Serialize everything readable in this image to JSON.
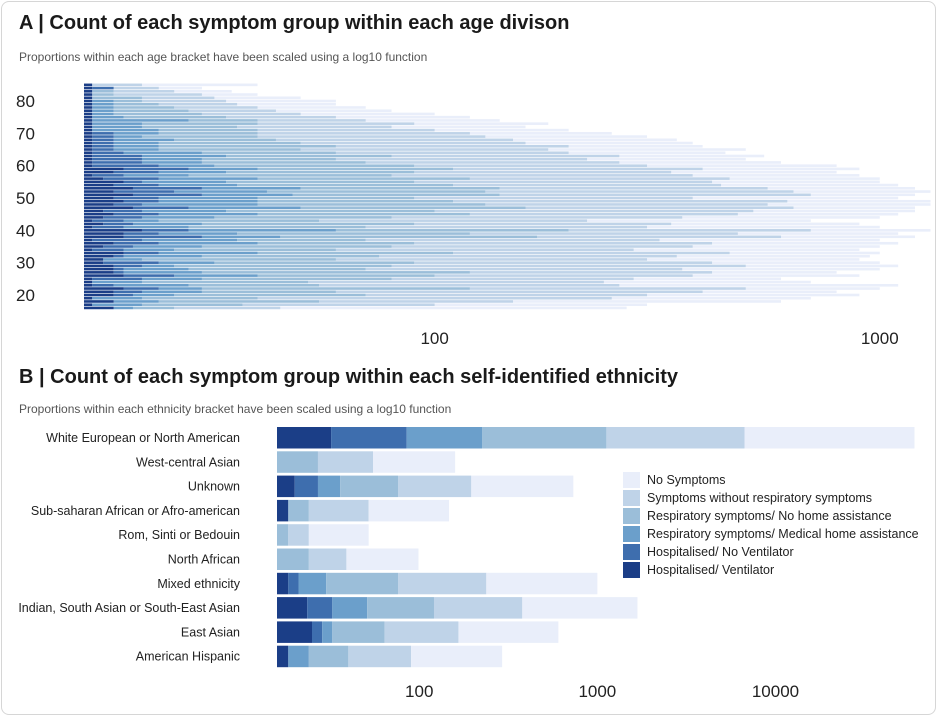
{
  "colors": {
    "No Symptoms": "#e9eefa",
    "Symptoms without respiratory symptoms": "#bfd3e8",
    "Respiratory symptoms/ No home assistance": "#9bbed9",
    "Respiratory symptoms/ Medical home assistance": "#6b9fcb",
    "Hospitalised/ No Ventilator": "#3e6eae",
    "Hospitalised/ Ventilator": "#1b3e87"
  },
  "chart_data": [
    {
      "type": "bar",
      "orientation": "horizontal-stacked",
      "title": "A | Count of each symptom group within each age divison",
      "subtitle": "Proportions within each age bracket have been scaled using a log10 function",
      "x_scale": "log",
      "xlim": [
        16.3,
        1200
      ],
      "x_ticks": [
        "100",
        "1000"
      ],
      "y_ticks": [
        "20",
        "30",
        "40",
        "50",
        "60",
        "70",
        "80"
      ],
      "ylim": [
        16,
        85
      ],
      "segment_order": [
        "Hospitalised/ Ventilator",
        "Hospitalised/ No Ventilator",
        "Respiratory symptoms/ Medical home assistance",
        "Respiratory symptoms/ No home assistance",
        "Symptoms without respiratory symptoms",
        "No Symptoms"
      ],
      "value_note_columns": [
        "age",
        "cumulative end of each segment"
      ],
      "rows": [
        [
          16,
          19,
          19,
          21,
          26,
          45,
          270
        ],
        [
          17,
          17,
          17,
          22,
          37,
          100,
          300
        ],
        [
          18,
          19,
          19,
          24,
          55,
          150,
          600
        ],
        [
          19,
          17,
          17,
          22,
          40,
          250,
          700
        ],
        [
          20,
          19,
          21,
          26,
          70,
          300,
          900
        ],
        [
          21,
          19,
          22,
          30,
          60,
          400,
          800
        ],
        [
          22,
          20,
          24,
          30,
          120,
          500,
          1000
        ],
        [
          23,
          17,
          19,
          28,
          55,
          260,
          1100
        ],
        [
          24,
          17,
          17,
          22,
          52,
          240,
          700
        ],
        [
          25,
          17,
          22,
          30,
          80,
          280,
          600
        ],
        [
          26,
          20,
          26,
          40,
          100,
          380,
          900
        ],
        [
          27,
          19,
          20,
          30,
          120,
          420,
          800
        ],
        [
          28,
          19,
          20,
          28,
          70,
          360,
          1000
        ],
        [
          29,
          19,
          22,
          26,
          80,
          500,
          1100
        ],
        [
          30,
          18,
          24,
          32,
          90,
          420,
          1000
        ],
        [
          31,
          18,
          18,
          22,
          60,
          300,
          900
        ],
        [
          32,
          19,
          20,
          30,
          75,
          350,
          950
        ],
        [
          33,
          20,
          24,
          40,
          110,
          460,
          1000
        ],
        [
          34,
          17,
          20,
          26,
          60,
          280,
          900
        ],
        [
          35,
          18,
          21,
          30,
          80,
          380,
          1000
        ],
        [
          36,
          19,
          24,
          40,
          90,
          420,
          1100
        ],
        [
          37,
          17,
          22,
          36,
          70,
          320,
          1000
        ],
        [
          38,
          20,
          30,
          45,
          170,
          600,
          1200
        ],
        [
          39,
          20,
          24,
          36,
          120,
          480,
          1100
        ],
        [
          40,
          22,
          28,
          60,
          200,
          700,
          1300
        ],
        [
          41,
          17,
          20,
          28,
          70,
          300,
          1000
        ],
        [
          42,
          18,
          21,
          30,
          90,
          340,
          900
        ],
        [
          43,
          17,
          20,
          24,
          55,
          220,
          700
        ],
        [
          44,
          18,
          22,
          32,
          80,
          360,
          1000
        ],
        [
          45,
          19,
          24,
          40,
          120,
          480,
          1100
        ],
        [
          46,
          18,
          22,
          34,
          100,
          520,
          1200
        ],
        [
          47,
          21,
          28,
          50,
          160,
          640,
          1200
        ],
        [
          48,
          19,
          22,
          40,
          130,
          560,
          1300
        ],
        [
          49,
          20,
          24,
          40,
          110,
          620,
          1300
        ],
        [
          50,
          19,
          24,
          40,
          90,
          380,
          1100
        ],
        [
          51,
          21,
          30,
          48,
          140,
          700,
          1200
        ],
        [
          52,
          19,
          26,
          42,
          130,
          640,
          1300
        ],
        [
          53,
          21,
          30,
          50,
          140,
          560,
          1200
        ],
        [
          54,
          19,
          24,
          36,
          110,
          440,
          1100
        ],
        [
          55,
          20,
          22,
          34,
          90,
          420,
          1000
        ],
        [
          56,
          18,
          24,
          40,
          120,
          460,
          1000
        ],
        [
          57,
          17,
          20,
          28,
          80,
          380,
          900
        ],
        [
          58,
          19,
          24,
          34,
          90,
          340,
          800
        ],
        [
          59,
          20,
          28,
          40,
          110,
          400,
          900
        ],
        [
          60,
          17,
          24,
          32,
          90,
          300,
          800
        ],
        [
          61,
          17,
          22,
          30,
          70,
          260,
          600
        ],
        [
          62,
          17,
          22,
          30,
          60,
          220,
          500
        ],
        [
          63,
          17,
          22,
          34,
          80,
          260,
          550
        ],
        [
          64,
          17,
          20,
          30,
          60,
          200,
          450
        ],
        [
          65,
          17,
          19,
          24,
          50,
          180,
          500
        ],
        [
          66,
          17,
          19,
          24,
          60,
          200,
          400
        ],
        [
          67,
          17,
          19,
          24,
          50,
          160,
          380
        ],
        [
          68,
          17,
          19,
          26,
          44,
          150,
          350
        ],
        [
          69,
          17,
          19,
          22,
          40,
          130,
          300
        ],
        [
          70,
          17,
          19,
          24,
          40,
          120,
          250
        ],
        [
          71,
          17,
          17,
          24,
          40,
          100,
          200
        ],
        [
          72,
          17,
          17,
          22,
          36,
          80,
          160
        ],
        [
          73,
          17,
          17,
          22,
          40,
          90,
          180
        ],
        [
          74,
          17,
          17,
          28,
          40,
          70,
          140
        ],
        [
          75,
          17,
          17,
          20,
          34,
          60,
          120
        ],
        [
          76,
          17,
          17,
          19,
          30,
          50,
          100
        ],
        [
          77,
          17,
          17,
          19,
          28,
          44,
          80
        ],
        [
          78,
          17,
          17,
          19,
          26,
          40,
          70
        ],
        [
          79,
          17,
          17,
          19,
          24,
          36,
          60
        ],
        [
          80,
          17,
          17,
          19,
          22,
          34,
          60
        ],
        [
          81,
          17,
          17,
          17,
          22,
          32,
          50
        ],
        [
          82,
          17,
          17,
          17,
          19,
          30,
          40
        ],
        [
          83,
          17,
          17,
          17,
          19,
          26,
          35
        ],
        [
          84,
          17,
          19,
          19,
          19,
          24,
          30
        ],
        [
          85,
          17,
          17,
          17,
          17,
          22,
          40
        ]
      ]
    },
    {
      "type": "bar",
      "orientation": "horizontal-stacked",
      "title": "B | Count of each symptom group within each self-identified ethnicity",
      "subtitle": "Proportions within each ethnicity bracket have been scaled using a log10 function",
      "x_scale": "log",
      "xlim": [
        15.9,
        70000
      ],
      "x_ticks": [
        "100",
        "1000",
        "10000"
      ],
      "segment_order": [
        "Hospitalised/ Ventilator",
        "Hospitalised/ No Ventilator",
        "Respiratory symptoms/ Medical home assistance",
        "Respiratory symptoms/ No home assistance",
        "Symptoms without respiratory symptoms",
        "No Symptoms"
      ],
      "categories": [
        {
          "label": "White European or North American",
          "ends": [
            32,
            85,
            226,
            1124,
            6700,
            60300
          ]
        },
        {
          "label": "West-central Asian",
          "ends": [
            15.9,
            15.9,
            15.9,
            27,
            55,
            159
          ]
        },
        {
          "label": "Unknown",
          "ends": [
            20,
            27,
            36,
            76,
            196,
            733
          ]
        },
        {
          "label": "Sub-saharan African or Afro-american",
          "ends": [
            18.4,
            18.4,
            18.4,
            24,
            52,
            147
          ]
        },
        {
          "label": "Rom, Sinti or Bedouin",
          "ends": [
            15.9,
            15.9,
            15.9,
            18.4,
            24,
            52
          ]
        },
        {
          "label": "North African",
          "ends": [
            15.9,
            15.9,
            15.9,
            24,
            39,
            99
          ]
        },
        {
          "label": "Mixed ethnicity",
          "ends": [
            18.4,
            21,
            30,
            76,
            238,
            1000
          ]
        },
        {
          "label": "Indian, South Asian or South-East Asian",
          "ends": [
            23.5,
            32.5,
            51,
            121,
            379,
            1679
          ]
        },
        {
          "label": "East Asian",
          "ends": [
            25,
            28.5,
            32.5,
            64,
            166,
            604
          ]
        },
        {
          "label": "American Hispanic",
          "ends": [
            18.4,
            18.4,
            24,
            40,
            90,
            292
          ]
        }
      ],
      "legend_placement": "right",
      "legend": [
        "No Symptoms",
        "Symptoms without respiratory symptoms",
        "Respiratory symptoms/ No home assistance",
        "Respiratory symptoms/ Medical home assistance",
        "Hospitalised/ No Ventilator",
        "Hospitalised/ Ventilator"
      ]
    }
  ]
}
